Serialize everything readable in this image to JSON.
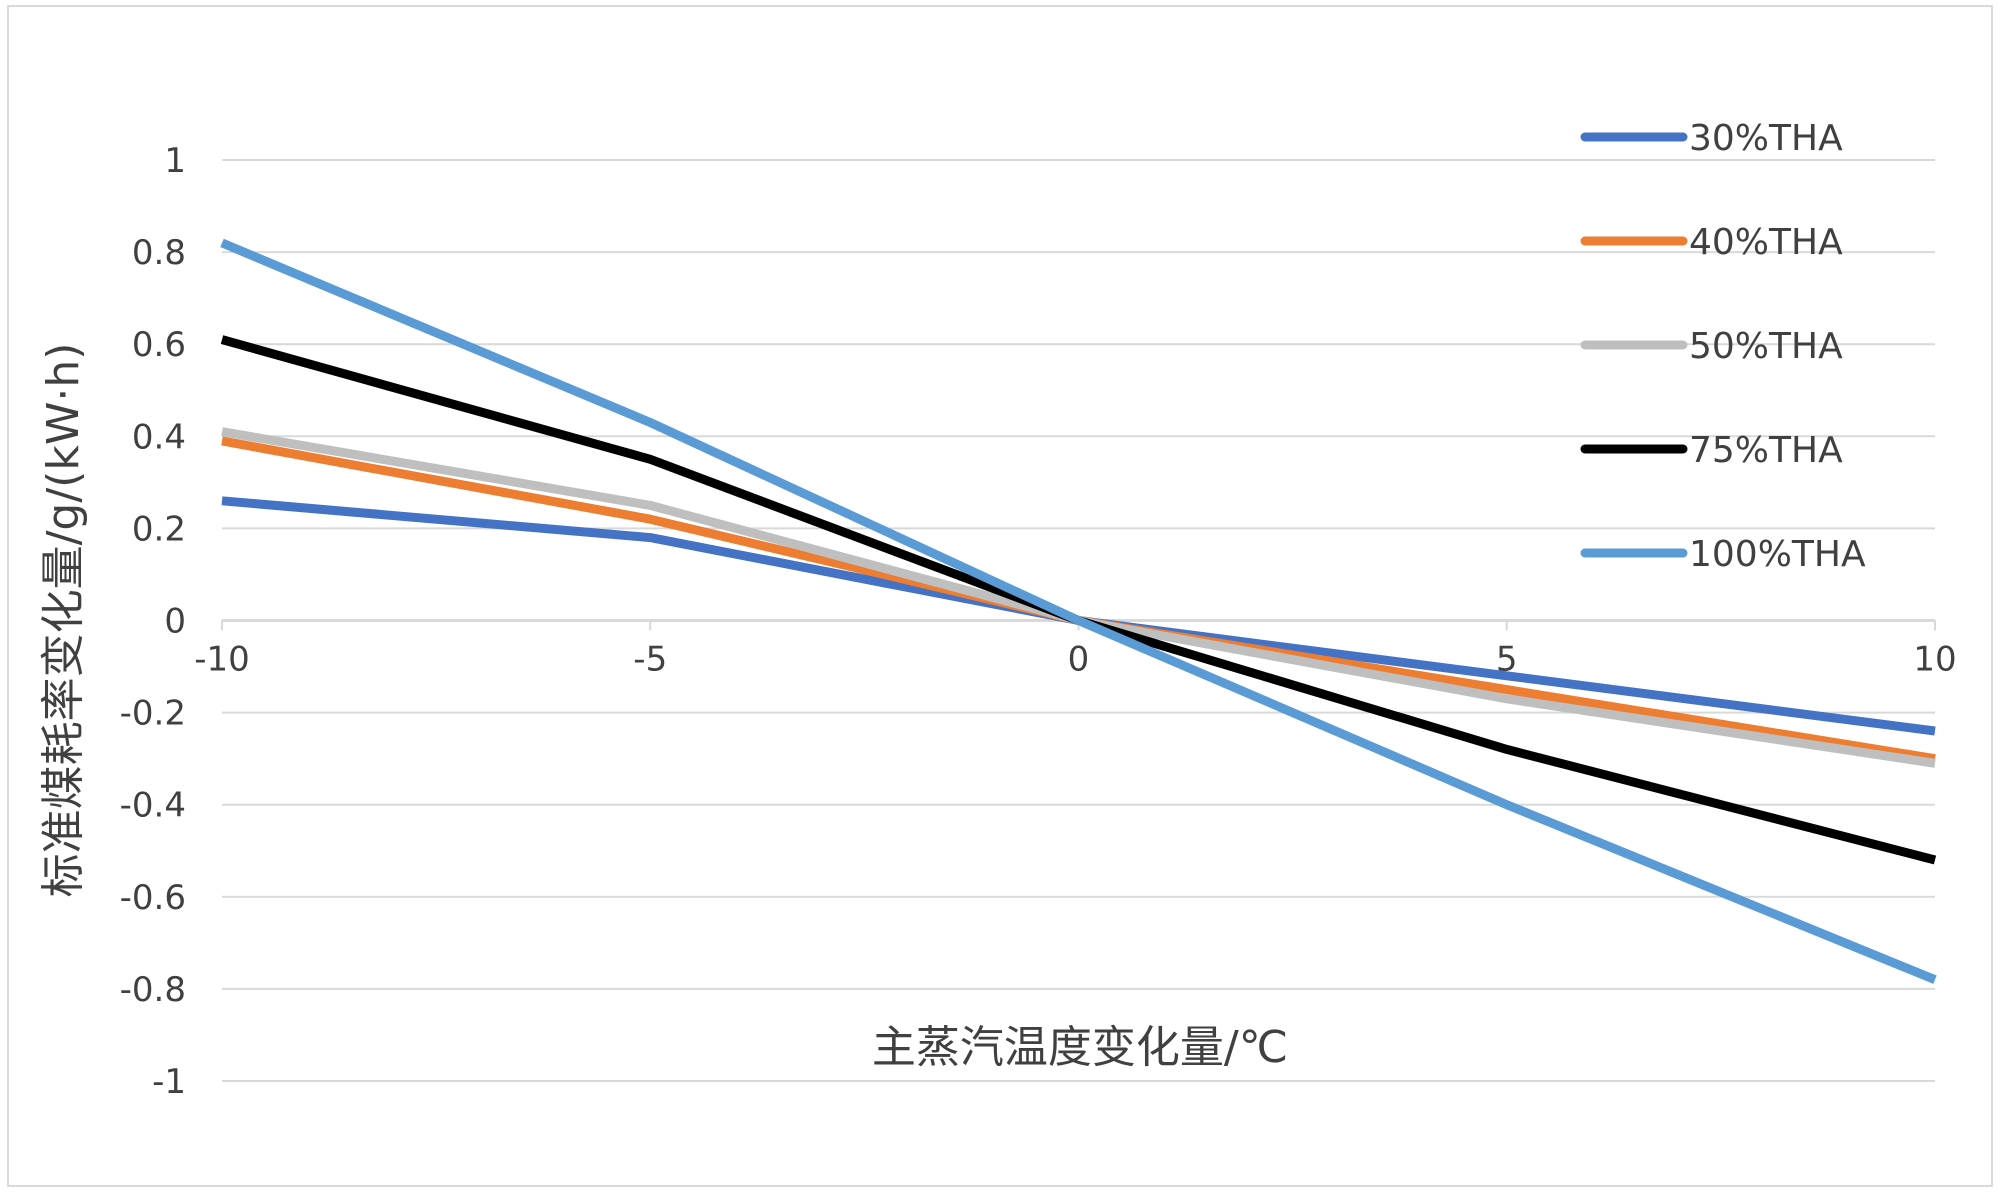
{
  "chart_data": {
    "type": "line",
    "title": "",
    "xlabel": "主蒸汽温度变化量/℃",
    "ylabel": "标准煤耗率变化量/g/(kW·h)",
    "x": [
      -10,
      -5,
      0,
      5,
      10
    ],
    "x_ticks": [
      "-10",
      "-5",
      "0",
      "5",
      "10"
    ],
    "xlim": [
      -10,
      10
    ],
    "y_ticks": [
      "1",
      "0.8",
      "0.6",
      "0.4",
      "0.2",
      "0",
      "-0.2",
      "-0.4",
      "-0.6",
      "-0.8",
      "-1"
    ],
    "y_tick_values": [
      1,
      0.8,
      0.6,
      0.4,
      0.2,
      0,
      -0.2,
      -0.4,
      -0.6,
      -0.8,
      -1
    ],
    "ylim": [
      -1,
      1
    ],
    "grid": true,
    "legend_position": "top-right",
    "series": [
      {
        "name": "30%THA",
        "color": "#4472C4",
        "values": [
          0.26,
          0.18,
          0,
          -0.12,
          -0.24
        ]
      },
      {
        "name": "40%THA",
        "color": "#ED7D31",
        "values": [
          0.39,
          0.22,
          0,
          -0.15,
          -0.3
        ]
      },
      {
        "name": "50%THA",
        "color": "#BFBFBF",
        "values": [
          0.41,
          0.25,
          0,
          -0.17,
          -0.31
        ]
      },
      {
        "name": "75%THA",
        "color": "#000000",
        "values": [
          0.61,
          0.35,
          0,
          -0.28,
          -0.52
        ]
      },
      {
        "name": "100%THA",
        "color": "#5B9BD5",
        "values": [
          0.82,
          0.43,
          0,
          -0.4,
          -0.78
        ]
      }
    ]
  }
}
